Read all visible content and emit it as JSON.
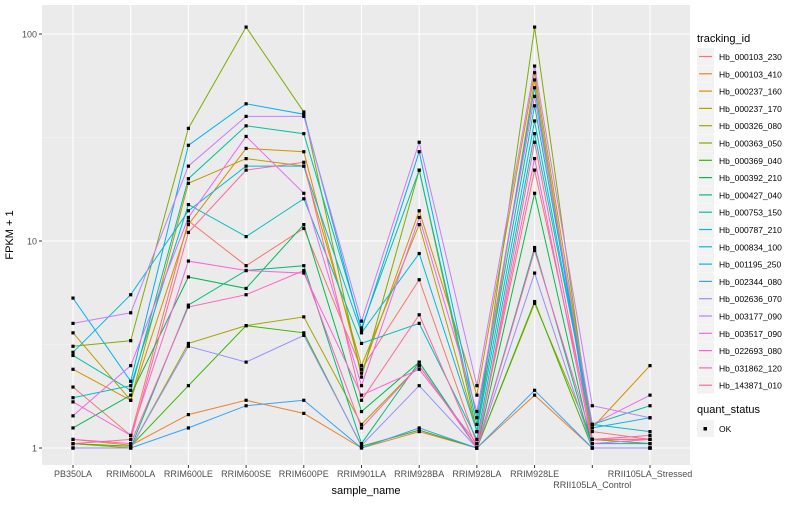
{
  "chart_data": {
    "type": "line",
    "xlabel": "sample_name",
    "ylabel": "FPKM + 1",
    "y_scale": "log10",
    "ylim": [
      0.9,
      125
    ],
    "y_ticks": [
      1,
      10,
      100
    ],
    "y_tick_labels": [
      "1",
      "10",
      "100"
    ],
    "grid": true,
    "legend_position": "right",
    "categories": [
      "PB350LA",
      "RRIM600LA",
      "RRIM600LE",
      "RRIM600SE",
      "RRIM600PE",
      "RRIM901LA",
      "RRIM928BA",
      "RRIM928LA",
      "RRIM928LE",
      "RRII105LA_Control",
      "RRII105LA_Stressed"
    ],
    "legend_title": "tracking_id",
    "shape_legend_title": "quant_status",
    "shape_legend_items": [
      "OK"
    ],
    "series": [
      {
        "name": "Hb_000103_230",
        "color": "#F8766D",
        "values": [
          1.97,
          1.15,
          12.5,
          7.6,
          11.5,
          2.4,
          6.5,
          1.05,
          22,
          1.2,
          1.1
        ]
      },
      {
        "name": "Hb_000103_410",
        "color": "#EA8331",
        "values": [
          1.1,
          1.03,
          1.45,
          1.7,
          1.47,
          1.0,
          1.2,
          1.0,
          1.8,
          1.0,
          1.0
        ]
      },
      {
        "name": "Hb_000237_160",
        "color": "#D89000",
        "values": [
          2.4,
          1.7,
          12,
          28,
          27,
          2.3,
          14,
          1.8,
          65,
          1.25,
          2.5
        ]
      },
      {
        "name": "Hb_000237_170",
        "color": "#C09B00",
        "values": [
          3.6,
          1.7,
          19,
          25,
          23,
          2.5,
          12,
          1.2,
          60,
          1.1,
          1.1
        ]
      },
      {
        "name": "Hb_000326_080",
        "color": "#A3A500",
        "values": [
          1.05,
          1.0,
          3.2,
          3.9,
          4.3,
          1.3,
          2.5,
          1.0,
          5.0,
          1.1,
          1.05
        ]
      },
      {
        "name": "Hb_000363_050",
        "color": "#7CAE00",
        "values": [
          3.1,
          3.3,
          35,
          108,
          42,
          2.2,
          22,
          1.2,
          108,
          1.1,
          1.05
        ]
      },
      {
        "name": "Hb_000369_040",
        "color": "#39B600",
        "values": [
          1.05,
          1.02,
          2.0,
          3.9,
          3.6,
          1.02,
          1.22,
          1.0,
          5.1,
          1.0,
          1.0
        ]
      },
      {
        "name": "Hb_000392_210",
        "color": "#00BB4E",
        "values": [
          1.25,
          1.8,
          6.7,
          5.9,
          12,
          1.5,
          2.6,
          1.0,
          17,
          1.0,
          1.0
        ]
      },
      {
        "name": "Hb_000427_040",
        "color": "#00BF7D",
        "values": [
          1.0,
          1.0,
          4.9,
          7.2,
          7.6,
          1.05,
          2.6,
          1.0,
          9.3,
          1.0,
          1.0
        ]
      },
      {
        "name": "Hb_000753_150",
        "color": "#00C1A3",
        "values": [
          2.8,
          1.9,
          20,
          36,
          33,
          3.8,
          22,
          1.3,
          45,
          1.3,
          1.6
        ]
      },
      {
        "name": "Hb_000787_210",
        "color": "#00BFC4",
        "values": [
          1.75,
          2.0,
          15,
          10.5,
          16,
          3.2,
          4.0,
          1.1,
          33,
          1.3,
          1.2
        ]
      },
      {
        "name": "Hb_000834_100",
        "color": "#00BAE0",
        "values": [
          2.9,
          5.5,
          14,
          23,
          23,
          3.6,
          8.7,
          1.2,
          38,
          1.25,
          1.4
        ]
      },
      {
        "name": "Hb_001195_250",
        "color": "#00B0F6",
        "values": [
          5.3,
          2.1,
          29,
          46,
          41,
          3.7,
          27,
          1.4,
          55,
          1.05,
          1.05
        ]
      },
      {
        "name": "Hb_002344_080",
        "color": "#35A2FF",
        "values": [
          1.0,
          1.0,
          1.25,
          1.6,
          1.7,
          1.0,
          1.25,
          1.0,
          1.9,
          1.0,
          1.0
        ]
      },
      {
        "name": "Hb_002636_070",
        "color": "#9590FF",
        "values": [
          1.0,
          1.0,
          3.1,
          2.6,
          3.5,
          1.03,
          2.0,
          1.0,
          7.0,
          1.0,
          1.0
        ]
      },
      {
        "name": "Hb_003177_090",
        "color": "#C77CFF",
        "values": [
          4.0,
          4.5,
          23,
          40,
          40,
          4.1,
          30,
          2.0,
          70,
          1.6,
          1.4
        ]
      },
      {
        "name": "Hb_003517_090",
        "color": "#E76BF3",
        "values": [
          1.43,
          2.5,
          13,
          32,
          17,
          2.0,
          13,
          1.5,
          50,
          1.3,
          1.8
        ]
      },
      {
        "name": "Hb_022693_080",
        "color": "#FA62DB",
        "values": [
          1.67,
          1.15,
          8,
          7.2,
          7.0,
          1.8,
          2.4,
          1.05,
          25,
          1.05,
          1.1
        ]
      },
      {
        "name": "Hb_031862_120",
        "color": "#FF62BC",
        "values": [
          1.1,
          1.05,
          4.8,
          5.5,
          7.2,
          1.25,
          2.5,
          1.0,
          9.0,
          1.1,
          1.15
        ]
      },
      {
        "name": "Hb_143871_010",
        "color": "#FF6A98",
        "values": [
          1.05,
          1.1,
          11,
          22,
          24,
          1.7,
          4.4,
          1.0,
          30,
          1.1,
          1.1
        ]
      }
    ]
  }
}
